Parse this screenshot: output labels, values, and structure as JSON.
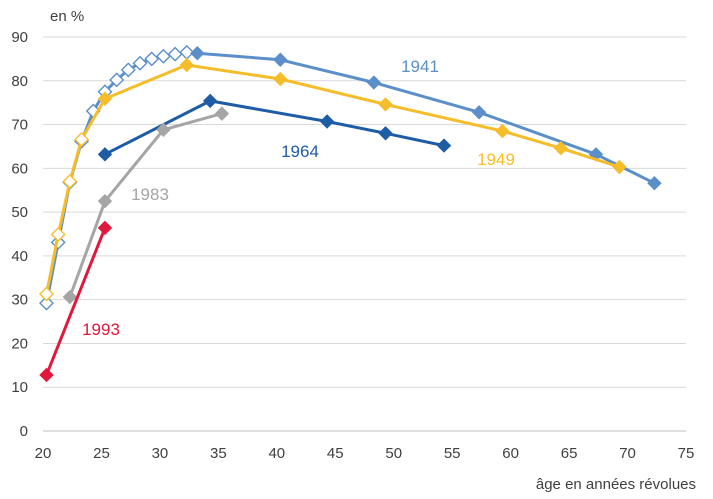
{
  "chart_data": {
    "type": "line",
    "title": "",
    "ylabel": "en  %",
    "xlabel": "âge en années révolues",
    "xlim": [
      20,
      75
    ],
    "ylim": [
      0,
      90
    ],
    "xticks": [
      20,
      25,
      30,
      35,
      40,
      45,
      50,
      55,
      60,
      65,
      70,
      75
    ],
    "yticks": [
      0,
      10,
      20,
      30,
      40,
      50,
      60,
      70,
      80,
      90
    ],
    "grid": "horizontal",
    "legend": "none; series labelled directly on the lines",
    "series": [
      {
        "name": "1941",
        "color": "#5b8fc9",
        "points": [
          [
            20.3,
            29.2
          ],
          [
            21.3,
            43.1
          ],
          [
            22.3,
            56.8
          ],
          [
            23.3,
            66.2
          ],
          [
            24.3,
            73.1
          ],
          [
            25.3,
            77.5
          ],
          [
            26.3,
            80.2
          ],
          [
            27.3,
            82.5
          ],
          [
            28.3,
            84.0
          ],
          [
            29.3,
            85.0
          ],
          [
            30.3,
            85.6
          ],
          [
            31.3,
            86.1
          ],
          [
            32.3,
            86.5
          ],
          [
            33.2,
            86.3
          ],
          [
            40.3,
            84.8
          ],
          [
            48.3,
            79.6
          ],
          [
            57.3,
            72.8
          ],
          [
            67.3,
            63.2
          ],
          [
            72.3,
            56.6
          ]
        ],
        "hollow_markers_through_age": 33
      },
      {
        "name": "1949",
        "color": "#f6bd2a",
        "points": [
          [
            20.3,
            31.3
          ],
          [
            21.3,
            44.9
          ],
          [
            22.3,
            57.0
          ],
          [
            23.3,
            66.6
          ],
          [
            25.3,
            75.9
          ],
          [
            32.3,
            83.6
          ],
          [
            40.3,
            80.4
          ],
          [
            49.3,
            74.6
          ],
          [
            59.3,
            68.5
          ],
          [
            64.3,
            64.6
          ],
          [
            69.3,
            60.3
          ]
        ],
        "hollow_markers_through_age": 24
      },
      {
        "name": "1964",
        "color": "#1f5ca6",
        "points": [
          [
            25.3,
            63.2
          ],
          [
            34.3,
            75.4
          ],
          [
            44.3,
            70.7
          ],
          [
            49.3,
            68.0
          ],
          [
            54.3,
            65.2
          ]
        ]
      },
      {
        "name": "1983",
        "color": "#a5a5a5",
        "points": [
          [
            22.3,
            30.6
          ],
          [
            25.3,
            52.5
          ],
          [
            30.3,
            68.8
          ],
          [
            35.3,
            72.5
          ]
        ]
      },
      {
        "name": "1993",
        "color": "#e0183c",
        "points": [
          [
            20.3,
            12.8
          ],
          [
            25.3,
            46.4
          ]
        ]
      }
    ]
  }
}
